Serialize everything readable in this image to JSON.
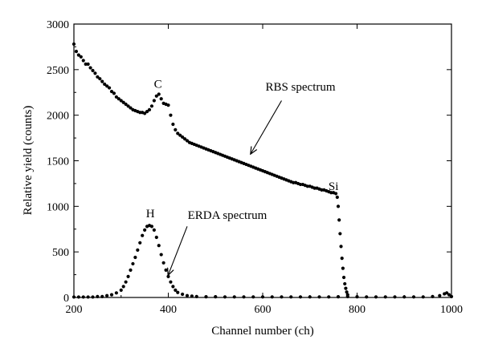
{
  "chart_data": {
    "type": "scatter",
    "xlabel": "Channel number (ch)",
    "ylabel": "Relative yield (counts)",
    "xlim": [
      200,
      1000
    ],
    "ylim": [
      0,
      3000
    ],
    "xticks": [
      200,
      400,
      600,
      800,
      1000
    ],
    "yticks": [
      0,
      500,
      1000,
      1500,
      2000,
      2500,
      3000
    ],
    "grid": false,
    "marker_color": "#000000",
    "series": [
      {
        "label_text": "RBS spectrum",
        "points": [
          [
            200,
            2780
          ],
          [
            205,
            2700
          ],
          [
            210,
            2660
          ],
          [
            215,
            2640
          ],
          [
            220,
            2600
          ],
          [
            225,
            2560
          ],
          [
            230,
            2560
          ],
          [
            235,
            2520
          ],
          [
            240,
            2490
          ],
          [
            245,
            2460
          ],
          [
            250,
            2420
          ],
          [
            255,
            2400
          ],
          [
            260,
            2370
          ],
          [
            265,
            2340
          ],
          [
            270,
            2320
          ],
          [
            275,
            2300
          ],
          [
            280,
            2260
          ],
          [
            285,
            2240
          ],
          [
            290,
            2200
          ],
          [
            295,
            2180
          ],
          [
            300,
            2160
          ],
          [
            305,
            2140
          ],
          [
            310,
            2120
          ],
          [
            315,
            2100
          ],
          [
            320,
            2080
          ],
          [
            325,
            2060
          ],
          [
            330,
            2050
          ],
          [
            335,
            2040
          ],
          [
            340,
            2030
          ],
          [
            345,
            2030
          ],
          [
            350,
            2020
          ],
          [
            355,
            2040
          ],
          [
            360,
            2060
          ],
          [
            365,
            2100
          ],
          [
            370,
            2160
          ],
          [
            375,
            2210
          ],
          [
            380,
            2230
          ],
          [
            385,
            2180
          ],
          [
            390,
            2130
          ],
          [
            395,
            2120
          ],
          [
            400,
            2110
          ],
          [
            405,
            2000
          ],
          [
            410,
            1900
          ],
          [
            415,
            1840
          ],
          [
            420,
            1800
          ],
          [
            425,
            1780
          ],
          [
            430,
            1760
          ],
          [
            435,
            1740
          ],
          [
            440,
            1720
          ],
          [
            445,
            1700
          ],
          [
            450,
            1690
          ],
          [
            455,
            1680
          ],
          [
            460,
            1670
          ],
          [
            465,
            1660
          ],
          [
            470,
            1650
          ],
          [
            475,
            1640
          ],
          [
            480,
            1630
          ],
          [
            485,
            1620
          ],
          [
            490,
            1610
          ],
          [
            495,
            1600
          ],
          [
            500,
            1590
          ],
          [
            505,
            1580
          ],
          [
            510,
            1570
          ],
          [
            515,
            1560
          ],
          [
            520,
            1550
          ],
          [
            525,
            1540
          ],
          [
            530,
            1530
          ],
          [
            535,
            1520
          ],
          [
            540,
            1510
          ],
          [
            545,
            1500
          ],
          [
            550,
            1490
          ],
          [
            555,
            1480
          ],
          [
            560,
            1470
          ],
          [
            565,
            1460
          ],
          [
            570,
            1450
          ],
          [
            575,
            1440
          ],
          [
            580,
            1430
          ],
          [
            585,
            1420
          ],
          [
            590,
            1410
          ],
          [
            595,
            1400
          ],
          [
            600,
            1390
          ],
          [
            605,
            1380
          ],
          [
            610,
            1370
          ],
          [
            615,
            1360
          ],
          [
            620,
            1350
          ],
          [
            625,
            1340
          ],
          [
            630,
            1330
          ],
          [
            635,
            1320
          ],
          [
            640,
            1310
          ],
          [
            645,
            1300
          ],
          [
            650,
            1290
          ],
          [
            655,
            1280
          ],
          [
            660,
            1270
          ],
          [
            665,
            1260
          ],
          [
            670,
            1260
          ],
          [
            675,
            1250
          ],
          [
            680,
            1240
          ],
          [
            685,
            1240
          ],
          [
            690,
            1230
          ],
          [
            695,
            1220
          ],
          [
            700,
            1220
          ],
          [
            705,
            1210
          ],
          [
            710,
            1200
          ],
          [
            715,
            1200
          ],
          [
            720,
            1190
          ],
          [
            725,
            1180
          ],
          [
            730,
            1180
          ],
          [
            735,
            1170
          ],
          [
            740,
            1160
          ],
          [
            745,
            1150
          ],
          [
            750,
            1150
          ],
          [
            755,
            1140
          ],
          [
            758,
            1100
          ],
          [
            760,
            1000
          ],
          [
            762,
            850
          ],
          [
            764,
            700
          ],
          [
            766,
            560
          ],
          [
            768,
            430
          ],
          [
            770,
            320
          ],
          [
            772,
            220
          ],
          [
            774,
            150
          ],
          [
            776,
            100
          ],
          [
            778,
            60
          ],
          [
            780,
            30
          ]
        ]
      },
      {
        "label_text": "ERDA spectrum",
        "points": [
          [
            200,
            5
          ],
          [
            210,
            5
          ],
          [
            220,
            5
          ],
          [
            230,
            5
          ],
          [
            240,
            5
          ],
          [
            250,
            10
          ],
          [
            260,
            10
          ],
          [
            270,
            20
          ],
          [
            280,
            30
          ],
          [
            290,
            50
          ],
          [
            300,
            80
          ],
          [
            305,
            120
          ],
          [
            310,
            170
          ],
          [
            315,
            230
          ],
          [
            320,
            300
          ],
          [
            325,
            370
          ],
          [
            330,
            440
          ],
          [
            335,
            520
          ],
          [
            340,
            600
          ],
          [
            345,
            680
          ],
          [
            350,
            740
          ],
          [
            355,
            780
          ],
          [
            360,
            790
          ],
          [
            365,
            780
          ],
          [
            370,
            740
          ],
          [
            375,
            660
          ],
          [
            380,
            570
          ],
          [
            385,
            470
          ],
          [
            390,
            380
          ],
          [
            395,
            300
          ],
          [
            400,
            230
          ],
          [
            405,
            170
          ],
          [
            410,
            120
          ],
          [
            415,
            80
          ],
          [
            420,
            55
          ],
          [
            430,
            35
          ],
          [
            440,
            20
          ],
          [
            450,
            15
          ],
          [
            460,
            10
          ],
          [
            480,
            8
          ],
          [
            500,
            8
          ],
          [
            520,
            6
          ],
          [
            540,
            6
          ],
          [
            560,
            6
          ],
          [
            580,
            6
          ],
          [
            600,
            6
          ],
          [
            620,
            6
          ],
          [
            640,
            6
          ],
          [
            660,
            6
          ],
          [
            680,
            6
          ],
          [
            700,
            6
          ],
          [
            720,
            6
          ],
          [
            740,
            6
          ],
          [
            760,
            8
          ],
          [
            780,
            10
          ],
          [
            800,
            8
          ],
          [
            820,
            6
          ],
          [
            840,
            6
          ],
          [
            860,
            6
          ],
          [
            880,
            6
          ],
          [
            900,
            6
          ],
          [
            920,
            6
          ],
          [
            940,
            6
          ],
          [
            960,
            10
          ],
          [
            975,
            20
          ],
          [
            985,
            40
          ],
          [
            990,
            50
          ],
          [
            995,
            30
          ],
          [
            1000,
            10
          ]
        ]
      }
    ],
    "annotations": [
      {
        "text": "C",
        "x": 378,
        "y": 2300
      },
      {
        "text": "RBS spectrum",
        "x": 680,
        "y": 2270
      },
      {
        "text": "Si",
        "x": 750,
        "y": 1180
      },
      {
        "text": "H",
        "x": 362,
        "y": 880
      },
      {
        "text": "ERDA spectrum",
        "x": 525,
        "y": 860
      }
    ]
  }
}
